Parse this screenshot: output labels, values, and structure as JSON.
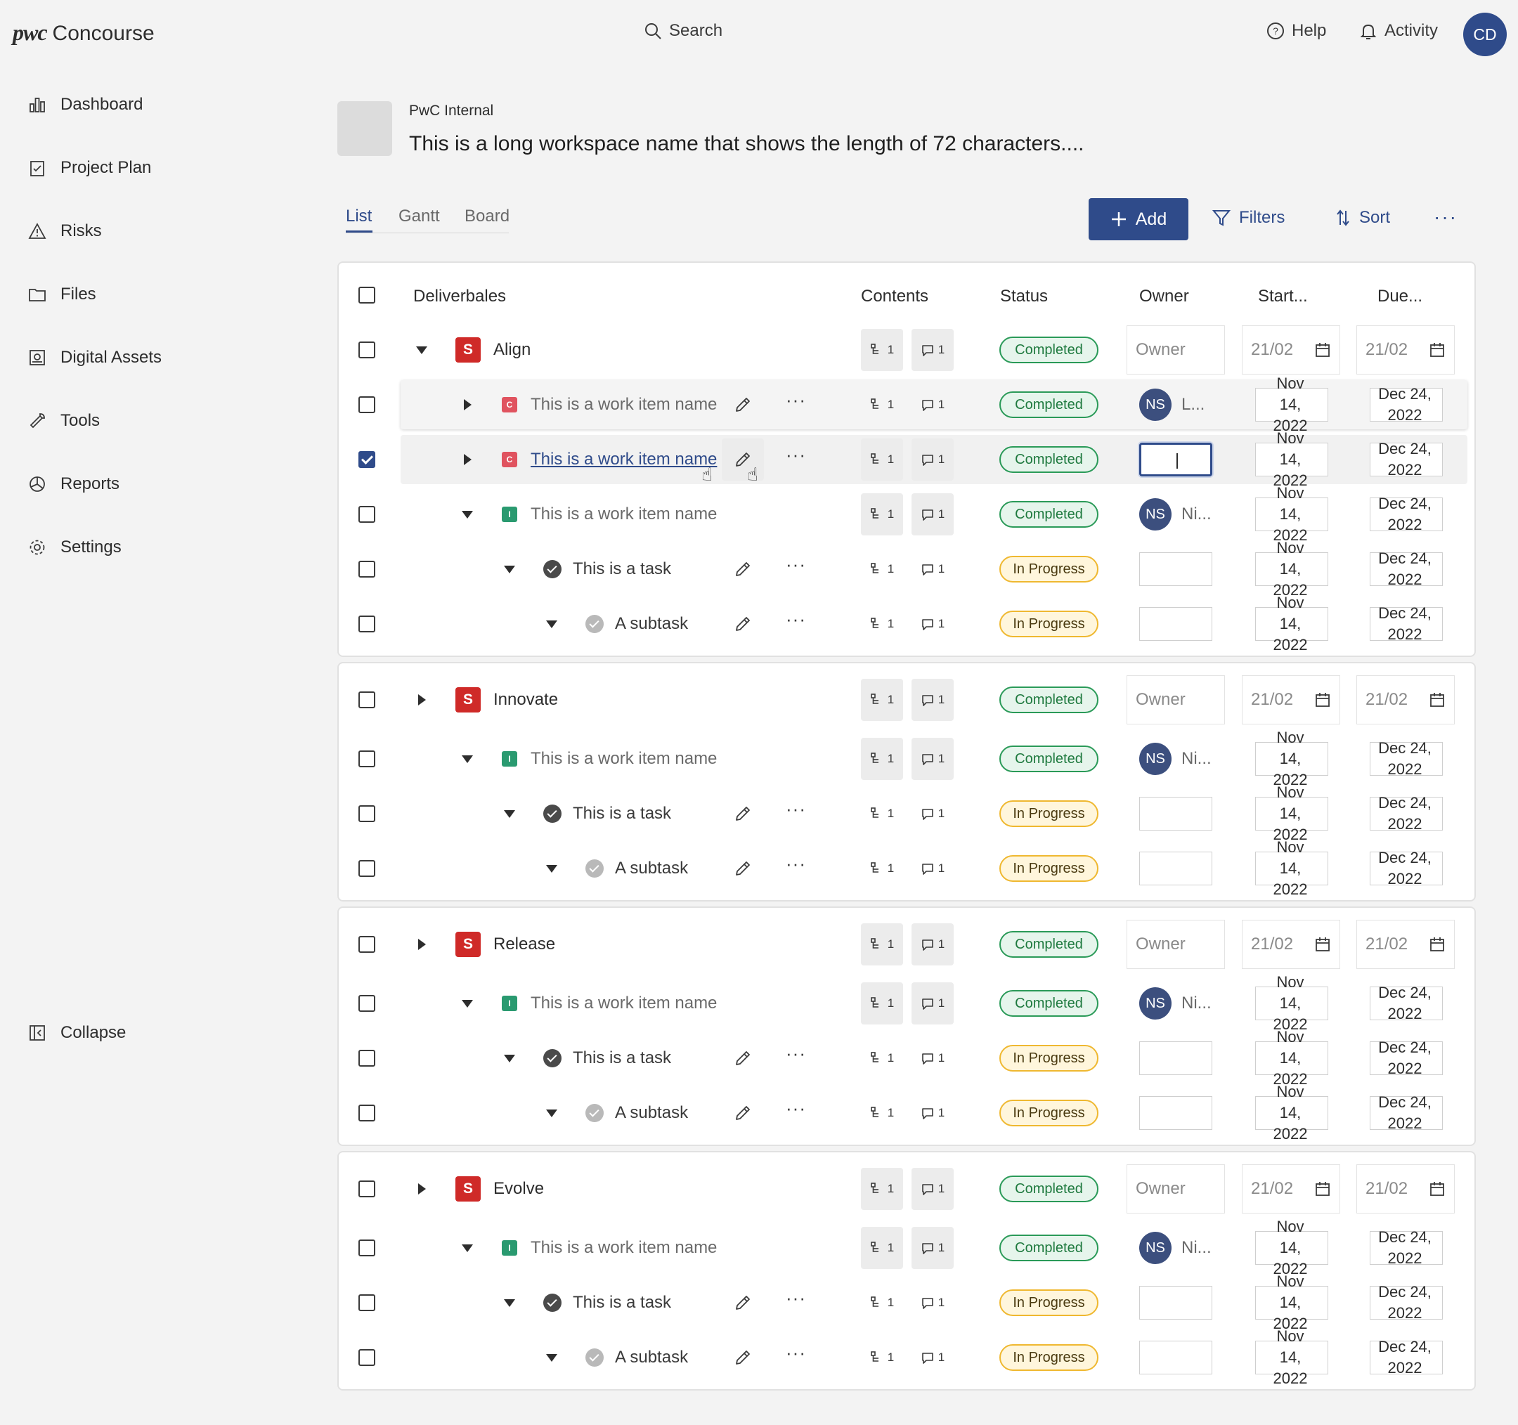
{
  "app": {
    "brand": "pwc",
    "name": "Concourse"
  },
  "topbar": {
    "search": "Search",
    "help": "Help",
    "activity": "Activity",
    "avatar": "CD"
  },
  "sidebar": {
    "items": [
      {
        "label": "Dashboard",
        "icon": "bar-chart-icon"
      },
      {
        "label": "Project Plan",
        "icon": "clipboard-icon"
      },
      {
        "label": "Risks",
        "icon": "warning-icon"
      },
      {
        "label": "Files",
        "icon": "folder-icon"
      },
      {
        "label": "Digital Assets",
        "icon": "image-icon"
      },
      {
        "label": "Tools",
        "icon": "wrench-icon"
      },
      {
        "label": "Reports",
        "icon": "pie-chart-icon"
      },
      {
        "label": "Settings",
        "icon": "gear-icon"
      }
    ],
    "collapse": "Collapse"
  },
  "workspace": {
    "org": "PwC Internal",
    "title": "This is a long workspace name that shows the length of 72 characters...."
  },
  "views": [
    "List",
    "Gantt",
    "Board"
  ],
  "toolbar": {
    "add": "Add",
    "filters": "Filters",
    "sort": "Sort",
    "more": "···"
  },
  "table": {
    "headers": {
      "name": "Deliverbales",
      "contents": "Contents",
      "status": "Status",
      "owner": "Owner",
      "start": "Start...",
      "due": "Due..."
    },
    "placeholders": {
      "owner": "Owner",
      "date": "21/02"
    },
    "counts": {
      "links": "1",
      "comments": "1"
    },
    "status": {
      "completed": "Completed",
      "progress": "In Progress"
    },
    "badges": {
      "s": "S",
      "c": "C",
      "i": "I"
    },
    "owner_initials": "NS",
    "names": {
      "L": "L...",
      "N": "Ni..."
    },
    "dates": {
      "start_line1": "Nov",
      "start_line2": "14,",
      "start_line3": "2022",
      "due_line1": "Dec 24,",
      "due_line2": "2022"
    },
    "rows": {
      "align": "Align",
      "work_item": "This is a work item name",
      "task": "This is a task",
      "subtask": "A subtask",
      "innovate": "Innovate",
      "release": "Release",
      "evolve": "Evolve"
    }
  }
}
